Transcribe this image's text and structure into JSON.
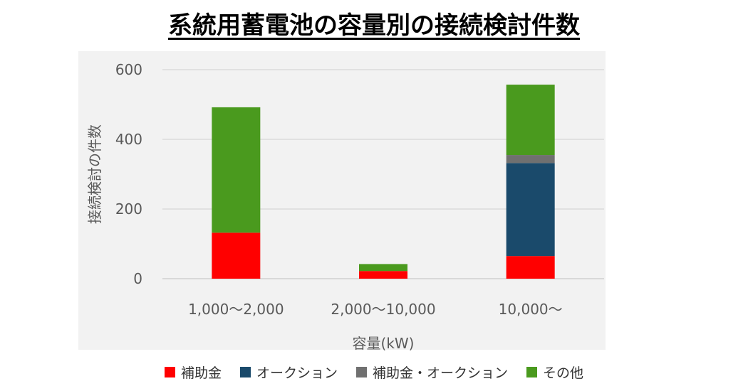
{
  "title": "系統用蓄電池の容量別の接続検討件数",
  "chart_data": {
    "type": "bar",
    "stacked": true,
    "title": "系統用蓄電池の容量別の接続検討件数",
    "xlabel": "容量(kW)",
    "ylabel": "接続検討の件数",
    "categories": [
      "1,000～2,000",
      "2,000～10,000",
      "10,000～"
    ],
    "ylim": [
      0,
      600
    ],
    "yticks": [
      0,
      200,
      400,
      600
    ],
    "grid": true,
    "legend_position": "bottom",
    "series": [
      {
        "name": "補助金",
        "color": "#ff0000",
        "values": [
          132,
          22,
          65
        ]
      },
      {
        "name": "オークション",
        "color": "#1a4a6b",
        "values": [
          0,
          0,
          267
        ]
      },
      {
        "name": "補助金・オークション",
        "color": "#707070",
        "values": [
          0,
          0,
          23
        ]
      },
      {
        "name": "その他",
        "color": "#4a9a1e",
        "values": [
          360,
          20,
          202
        ]
      }
    ]
  }
}
